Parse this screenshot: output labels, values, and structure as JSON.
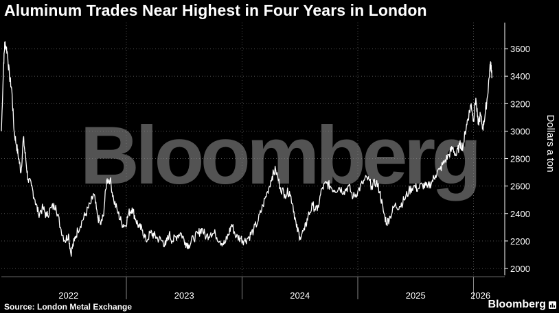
{
  "title": "Aluminum Trades Near Highest in Four Years in London",
  "source": "Source: London Metal Exchange",
  "brand": "Bloomberg",
  "watermark": "Bloomberg",
  "colors": {
    "background": "#000000",
    "line": "#ffffff",
    "grid": "#555555"
  },
  "chart_data": {
    "type": "line",
    "title": "Aluminum Trades Near Highest in Four Years in London",
    "ylabel": "Dollars a ton",
    "y_axis_side": "right",
    "ylim": [
      1950,
      3790
    ],
    "yticks": [
      2000,
      2200,
      2400,
      2600,
      2800,
      3000,
      3200,
      3400,
      3600
    ],
    "xlim": [
      2021.92,
      2026.27
    ],
    "xticks": [
      {
        "label": "2022",
        "at": 2022.5
      },
      {
        "label": "2023",
        "at": 2023.5
      },
      {
        "label": "2024",
        "at": 2024.5
      },
      {
        "label": "2025",
        "at": 2025.5
      },
      {
        "label": "2026",
        "at": 2026.06
      }
    ],
    "year_boundaries": [
      2023.0,
      2024.0,
      2025.0,
      2026.0
    ],
    "grid": true,
    "series": [
      {
        "values": [
          [
            2021.92,
            3000
          ],
          [
            2021.94,
            3500
          ],
          [
            2021.95,
            3650
          ],
          [
            2021.97,
            3580
          ],
          [
            2021.99,
            3400
          ],
          [
            2022.01,
            3300
          ],
          [
            2022.03,
            3000
          ],
          [
            2022.05,
            2900
          ],
          [
            2022.07,
            2800
          ],
          [
            2022.09,
            2700
          ],
          [
            2022.11,
            2950
          ],
          [
            2022.13,
            2800
          ],
          [
            2022.15,
            2650
          ],
          [
            2022.18,
            2600
          ],
          [
            2022.21,
            2500
          ],
          [
            2022.24,
            2400
          ],
          [
            2022.28,
            2440
          ],
          [
            2022.31,
            2380
          ],
          [
            2022.35,
            2440
          ],
          [
            2022.39,
            2460
          ],
          [
            2022.43,
            2300
          ],
          [
            2022.47,
            2200
          ],
          [
            2022.5,
            2250
          ],
          [
            2022.52,
            2110
          ],
          [
            2022.55,
            2200
          ],
          [
            2022.58,
            2280
          ],
          [
            2022.62,
            2350
          ],
          [
            2022.65,
            2400
          ],
          [
            2022.69,
            2470
          ],
          [
            2022.72,
            2540
          ],
          [
            2022.75,
            2380
          ],
          [
            2022.78,
            2320
          ],
          [
            2022.8,
            2380
          ],
          [
            2022.83,
            2640
          ],
          [
            2022.86,
            2650
          ],
          [
            2022.89,
            2500
          ],
          [
            2022.93,
            2400
          ],
          [
            2022.96,
            2330
          ],
          [
            2022.99,
            2310
          ],
          [
            2023.02,
            2400
          ],
          [
            2023.05,
            2440
          ],
          [
            2023.08,
            2360
          ],
          [
            2023.11,
            2300
          ],
          [
            2023.14,
            2280
          ],
          [
            2023.17,
            2200
          ],
          [
            2023.21,
            2260
          ],
          [
            2023.24,
            2240
          ],
          [
            2023.27,
            2220
          ],
          [
            2023.31,
            2200
          ],
          [
            2023.34,
            2170
          ],
          [
            2023.37,
            2250
          ],
          [
            2023.4,
            2200
          ],
          [
            2023.44,
            2240
          ],
          [
            2023.47,
            2260
          ],
          [
            2023.51,
            2190
          ],
          [
            2023.54,
            2170
          ],
          [
            2023.58,
            2220
          ],
          [
            2023.62,
            2250
          ],
          [
            2023.65,
            2290
          ],
          [
            2023.69,
            2230
          ],
          [
            2023.73,
            2260
          ],
          [
            2023.77,
            2250
          ],
          [
            2023.81,
            2200
          ],
          [
            2023.85,
            2180
          ],
          [
            2023.88,
            2240
          ],
          [
            2023.91,
            2320
          ],
          [
            2023.95,
            2230
          ],
          [
            2023.99,
            2220
          ],
          [
            2024.02,
            2200
          ],
          [
            2024.06,
            2230
          ],
          [
            2024.1,
            2280
          ],
          [
            2024.14,
            2350
          ],
          [
            2024.18,
            2460
          ],
          [
            2024.22,
            2560
          ],
          [
            2024.26,
            2670
          ],
          [
            2024.29,
            2720
          ],
          [
            2024.33,
            2590
          ],
          [
            2024.37,
            2540
          ],
          [
            2024.41,
            2560
          ],
          [
            2024.44,
            2460
          ],
          [
            2024.47,
            2300
          ],
          [
            2024.5,
            2230
          ],
          [
            2024.54,
            2280
          ],
          [
            2024.57,
            2380
          ],
          [
            2024.61,
            2460
          ],
          [
            2024.65,
            2420
          ],
          [
            2024.69,
            2580
          ],
          [
            2024.73,
            2620
          ],
          [
            2024.76,
            2600
          ],
          [
            2024.8,
            2570
          ],
          [
            2024.84,
            2590
          ],
          [
            2024.88,
            2560
          ],
          [
            2024.92,
            2600
          ],
          [
            2024.96,
            2520
          ],
          [
            2025.0,
            2560
          ],
          [
            2025.04,
            2620
          ],
          [
            2025.08,
            2660
          ],
          [
            2025.12,
            2600
          ],
          [
            2025.16,
            2630
          ],
          [
            2025.19,
            2560
          ],
          [
            2025.22,
            2420
          ],
          [
            2025.25,
            2330
          ],
          [
            2025.28,
            2380
          ],
          [
            2025.32,
            2460
          ],
          [
            2025.36,
            2450
          ],
          [
            2025.4,
            2500
          ],
          [
            2025.44,
            2560
          ],
          [
            2025.48,
            2600
          ],
          [
            2025.52,
            2580
          ],
          [
            2025.56,
            2610
          ],
          [
            2025.6,
            2590
          ],
          [
            2025.64,
            2630
          ],
          [
            2025.67,
            2680
          ],
          [
            2025.71,
            2720
          ],
          [
            2025.75,
            2780
          ],
          [
            2025.79,
            2830
          ],
          [
            2025.82,
            2880
          ],
          [
            2025.85,
            2820
          ],
          [
            2025.88,
            2900
          ],
          [
            2025.91,
            2890
          ],
          [
            2025.94,
            3050
          ],
          [
            2025.96,
            3120
          ],
          [
            2025.98,
            3200
          ],
          [
            2026.0,
            3080
          ],
          [
            2026.02,
            3240
          ],
          [
            2026.04,
            3050
          ],
          [
            2026.06,
            3120
          ],
          [
            2026.08,
            3020
          ],
          [
            2026.1,
            3120
          ],
          [
            2026.12,
            3250
          ],
          [
            2026.14,
            3440
          ],
          [
            2026.15,
            3500
          ],
          [
            2026.16,
            3400
          ]
        ]
      }
    ]
  }
}
